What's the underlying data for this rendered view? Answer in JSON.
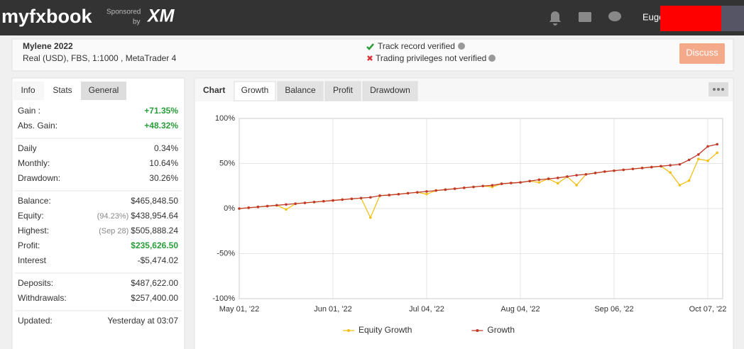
{
  "header": {
    "logo": "myfxbook",
    "sponsored": "Sponsored",
    "by": "by",
    "sponsor": "XM",
    "user": "Euge"
  },
  "account": {
    "name": "Mylene 2022",
    "details": "Real (USD), FBS, 1:1000 , MetaTrader 4",
    "track": "Track record verified",
    "trading": "Trading privileges not verified",
    "button": "Discuss"
  },
  "left_tabs": [
    "Info",
    "Stats",
    "General"
  ],
  "stats": [
    [
      {
        "label": "Gain :",
        "value": "+71.35%",
        "positive": true
      },
      {
        "label": "Abs. Gain:",
        "value": "+48.32%",
        "positive": true
      }
    ],
    [
      {
        "label": "Daily",
        "value": "0.34%"
      },
      {
        "label": "Monthly:",
        "value": "10.64%"
      },
      {
        "label": "Drawdown:",
        "value": "30.26%"
      }
    ],
    [
      {
        "label": "Balance:",
        "value": "$465,848.50"
      },
      {
        "label": "Equity:",
        "note": "(94.23%)",
        "value": "$438,954.64"
      },
      {
        "label": "Highest:",
        "note": "(Sep 28)",
        "value": "$505,888.24"
      },
      {
        "label": "Profit:",
        "value": "$235,626.50",
        "positive": true
      },
      {
        "label": "Interest",
        "value": "-$5,474.02"
      }
    ],
    [
      {
        "label": "Deposits:",
        "value": "$487,622.00"
      },
      {
        "label": "Withdrawals:",
        "value": "$257,400.00"
      }
    ],
    [
      {
        "label": "Updated:",
        "value": "Yesterday at 03:07"
      }
    ]
  ],
  "chart_tabs": {
    "label": "Chart",
    "tabs": [
      "Growth",
      "Balance",
      "Profit",
      "Drawdown"
    ]
  },
  "chart_data": {
    "type": "line",
    "categories": [
      "May 01, '22",
      null,
      null,
      null,
      null,
      null,
      null,
      null,
      null,
      null,
      "Jun 01, '22",
      null,
      null,
      null,
      null,
      null,
      null,
      null,
      null,
      null,
      "Jul 04, '22",
      null,
      null,
      null,
      null,
      null,
      null,
      null,
      null,
      null,
      "Aug 04, '22",
      null,
      null,
      null,
      null,
      null,
      null,
      null,
      null,
      null,
      "Sep 06, '22",
      null,
      null,
      null,
      null,
      null,
      null,
      null,
      null,
      null,
      "Oct 07, '22",
      null
    ],
    "series": [
      {
        "name": "Equity Growth",
        "color": "#f2c018",
        "values": [
          0,
          0.9,
          1.8,
          2.7,
          3.6,
          -1,
          5.4,
          6.3,
          7.2,
          8.1,
          9,
          9.9,
          10.8,
          11.6,
          -10,
          14.3,
          15,
          15.9,
          17,
          18,
          16,
          20,
          21,
          22,
          23,
          24,
          25,
          24,
          27.5,
          28.3,
          29,
          30.5,
          29,
          33,
          28,
          35.5,
          26,
          38,
          39.5,
          41,
          42,
          43,
          44,
          45,
          46,
          47,
          40,
          26,
          31,
          55,
          53,
          62
        ]
      },
      {
        "name": "Growth",
        "color": "#c0392b",
        "values": [
          0,
          0.9,
          1.8,
          2.7,
          3.6,
          4.5,
          5.4,
          6.3,
          7.2,
          8.1,
          9,
          9.9,
          10.8,
          11.6,
          12.4,
          14.3,
          15,
          15.9,
          17,
          18,
          19,
          20,
          21,
          22,
          23,
          24,
          25,
          25.8,
          27.5,
          28.3,
          29,
          30.5,
          32,
          33,
          34,
          35.5,
          37,
          38,
          39.5,
          41,
          42,
          43,
          44,
          45,
          46,
          47,
          48,
          49,
          54,
          60,
          69,
          71.35
        ]
      }
    ],
    "ylim": [
      -100,
      100
    ],
    "yticks": [
      {
        "value": 100,
        "label": "100%"
      },
      {
        "value": 50,
        "label": "50%"
      },
      {
        "value": 0,
        "label": "0%"
      },
      {
        "value": -50,
        "label": "-50%"
      },
      {
        "value": -100,
        "label": "-100%"
      }
    ],
    "grid": true,
    "legend": "bottom"
  }
}
